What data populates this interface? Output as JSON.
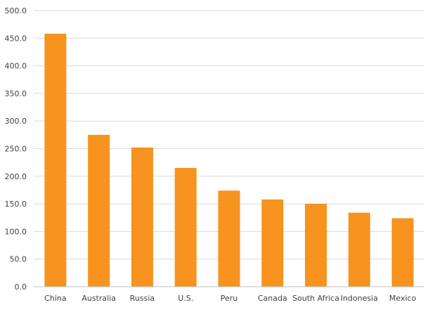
{
  "chart_data": {
    "type": "bar",
    "title": "",
    "xlabel": "",
    "ylabel": "",
    "categories": [
      "China",
      "Australia",
      "Russia",
      "U.S.",
      "Peru",
      "Canada",
      "South Africa",
      "Indonesia",
      "Mexico"
    ],
    "values": [
      458,
      275,
      252,
      215,
      174,
      158,
      150,
      134,
      124
    ],
    "ylim": [
      0,
      500
    ],
    "y_ticks": [
      "0.0",
      "50.0",
      "100.0",
      "150.0",
      "200.0",
      "250.0",
      "300.0",
      "350.0",
      "400.0",
      "450.0",
      "500.0"
    ],
    "grid": true,
    "legend": "none",
    "colors": {
      "bar": "#F7931E",
      "grid": "#D9D9D9",
      "axis": "#BFBFBF",
      "text": "#404040"
    }
  }
}
